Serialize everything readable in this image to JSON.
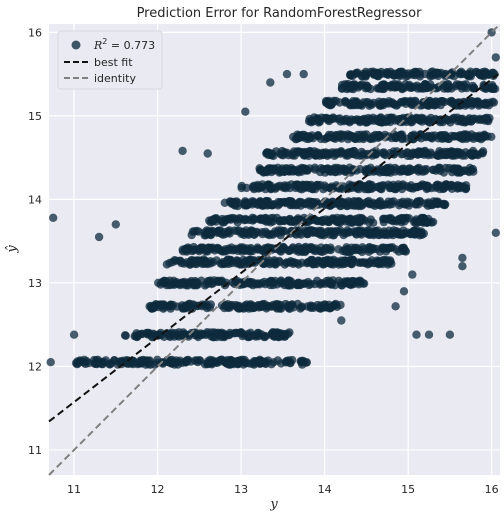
{
  "chart_data": {
    "type": "scatter",
    "title": "Prediction Error for RandomForestRegressor",
    "xlabel": "y",
    "ylabel": "ŷ",
    "xlim": [
      10.7,
      16.1
    ],
    "ylim": [
      10.7,
      16.1
    ],
    "x_ticks": [
      11,
      12,
      13,
      14,
      15,
      16
    ],
    "y_ticks": [
      11,
      12,
      13,
      14,
      15,
      16
    ],
    "grid": true,
    "legend_position": "top-left",
    "legend": [
      {
        "label_prefix": "R",
        "label_sup": "2",
        "label_suffix": " = 0.773",
        "kind": "scatter"
      },
      {
        "label": "best fit",
        "kind": "line"
      },
      {
        "label": "identity",
        "kind": "line"
      }
    ],
    "r2": 0.773,
    "best_fit": {
      "slope": 0.773,
      "intercept": 3.07
    },
    "identity": {
      "slope": 1,
      "intercept": 0
    },
    "colors": {
      "points": "#0d2b3e",
      "best_fit": "#111111",
      "identity": "#808080",
      "plot_bg": "#eaeaf2",
      "grid": "#ffffff"
    },
    "point_clusters": [
      {
        "x_range": [
          11.0,
          13.8
        ],
        "y": 12.05
      },
      {
        "x_range": [
          11.6,
          13.6
        ],
        "y": 12.38
      },
      {
        "x_range": [
          11.9,
          14.2
        ],
        "y": 12.72
      },
      {
        "x_range": [
          12.0,
          14.5
        ],
        "y": 13.0
      },
      {
        "x_range": [
          12.1,
          14.8
        ],
        "y": 13.25
      },
      {
        "x_range": [
          12.3,
          15.0
        ],
        "y": 13.4
      },
      {
        "x_range": [
          12.4,
          15.2
        ],
        "y": 13.6
      },
      {
        "x_range": [
          12.6,
          15.3
        ],
        "y": 13.75
      },
      {
        "x_range": [
          12.8,
          15.5
        ],
        "y": 13.95
      },
      {
        "x_range": [
          13.0,
          15.7
        ],
        "y": 14.15
      },
      {
        "x_range": [
          13.2,
          15.8
        ],
        "y": 14.35
      },
      {
        "x_range": [
          13.3,
          15.9
        ],
        "y": 14.55
      },
      {
        "x_range": [
          13.6,
          16.0
        ],
        "y": 14.75
      },
      {
        "x_range": [
          13.8,
          16.0
        ],
        "y": 14.95
      },
      {
        "x_range": [
          14.0,
          16.05
        ],
        "y": 15.15
      },
      {
        "x_range": [
          14.2,
          16.05
        ],
        "y": 15.35
      },
      {
        "x_range": [
          14.3,
          16.05
        ],
        "y": 15.5
      }
    ],
    "outliers": [
      {
        "x": 10.75,
        "y": 13.78
      },
      {
        "x": 10.72,
        "y": 12.05
      },
      {
        "x": 11.5,
        "y": 13.7
      },
      {
        "x": 11.3,
        "y": 13.55
      },
      {
        "x": 11.0,
        "y": 12.38
      },
      {
        "x": 12.3,
        "y": 14.58
      },
      {
        "x": 12.6,
        "y": 14.55
      },
      {
        "x": 13.05,
        "y": 15.05
      },
      {
        "x": 13.35,
        "y": 15.4
      },
      {
        "x": 13.55,
        "y": 15.5
      },
      {
        "x": 13.75,
        "y": 15.5
      },
      {
        "x": 16.0,
        "y": 16.0
      },
      {
        "x": 16.05,
        "y": 15.7
      },
      {
        "x": 15.1,
        "y": 12.38
      },
      {
        "x": 15.25,
        "y": 12.38
      },
      {
        "x": 14.85,
        "y": 12.72
      },
      {
        "x": 14.95,
        "y": 12.9
      },
      {
        "x": 15.05,
        "y": 13.1
      },
      {
        "x": 15.65,
        "y": 13.2
      },
      {
        "x": 15.65,
        "y": 13.3
      },
      {
        "x": 15.5,
        "y": 12.38
      },
      {
        "x": 16.05,
        "y": 13.6
      },
      {
        "x": 14.2,
        "y": 12.55
      }
    ]
  }
}
